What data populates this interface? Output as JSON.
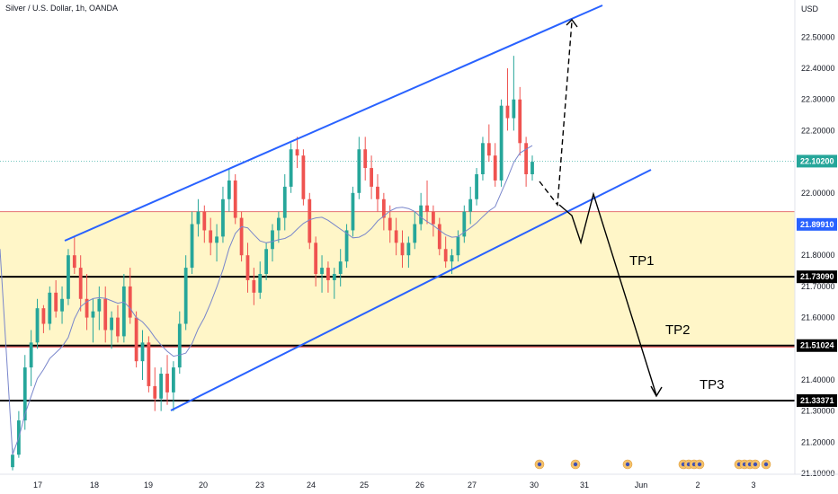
{
  "header": {
    "title": "Silver / U.S. Dollar, 1h, OANDA"
  },
  "chart_data": {
    "type": "candlestick",
    "title": "Silver / U.S. Dollar, 1h, OANDA",
    "currency": "USD",
    "ylim": [
      21.07,
      22.58
    ],
    "y_ticks": [
      "22.50000",
      "22.40000",
      "22.30000",
      "22.20000",
      "22.10000",
      "22.00000",
      "21.90000",
      "21.80000",
      "21.70000",
      "21.60000",
      "21.50000",
      "21.40000",
      "21.30000",
      "21.20000",
      "21.10000"
    ],
    "x_ticks": [
      "17",
      "18",
      "19",
      "20",
      "23",
      "24",
      "25",
      "26",
      "27",
      "30",
      "31",
      "Jun",
      "2",
      "3"
    ],
    "price_tags": [
      {
        "label": "22.10200",
        "value": 22.102,
        "color": "#26a69a"
      },
      {
        "label": "21.89910",
        "value": 21.8991,
        "color": "#2962ff"
      },
      {
        "label": "21.73090",
        "value": 21.7309,
        "color": "#000000"
      },
      {
        "label": "21.51024",
        "value": 21.5102,
        "color": "#000000"
      },
      {
        "label": "21.33371",
        "value": 21.3337,
        "color": "#000000"
      }
    ],
    "zone": {
      "top": 21.94,
      "bottom": 21.512,
      "color": "#fff6c8"
    },
    "levels": [
      21.7309,
      21.5102,
      21.3337
    ],
    "targets": [
      {
        "label": "TP1",
        "value": 21.78
      },
      {
        "label": "TP2",
        "value": 21.58
      },
      {
        "label": "TP3",
        "value": 21.4
      }
    ],
    "candles": [
      [
        21.12,
        21.18,
        21.11,
        21.16
      ],
      [
        21.16,
        21.3,
        21.15,
        21.27
      ],
      [
        21.27,
        21.48,
        21.24,
        21.44
      ],
      [
        21.44,
        21.56,
        21.38,
        21.52
      ],
      [
        21.52,
        21.66,
        21.5,
        21.63
      ],
      [
        21.63,
        21.64,
        21.55,
        21.58
      ],
      [
        21.58,
        21.7,
        21.56,
        21.68
      ],
      [
        21.68,
        21.72,
        21.6,
        21.62
      ],
      [
        21.62,
        21.7,
        21.58,
        21.66
      ],
      [
        21.66,
        21.82,
        21.64,
        21.8
      ],
      [
        21.8,
        21.86,
        21.74,
        21.76
      ],
      [
        21.76,
        21.8,
        21.62,
        21.66
      ],
      [
        21.66,
        21.74,
        21.56,
        21.6
      ],
      [
        21.6,
        21.66,
        21.52,
        21.62
      ],
      [
        21.62,
        21.7,
        21.56,
        21.66
      ],
      [
        21.66,
        21.7,
        21.52,
        21.56
      ],
      [
        21.56,
        21.62,
        21.5,
        21.6
      ],
      [
        21.6,
        21.64,
        21.52,
        21.54
      ],
      [
        21.54,
        21.74,
        21.52,
        21.7
      ],
      [
        21.7,
        21.76,
        21.58,
        21.6
      ],
      [
        21.6,
        21.62,
        21.44,
        21.46
      ],
      [
        21.46,
        21.56,
        21.4,
        21.52
      ],
      [
        21.52,
        21.54,
        21.36,
        21.38
      ],
      [
        21.38,
        21.44,
        21.3,
        21.34
      ],
      [
        21.34,
        21.44,
        21.3,
        21.42
      ],
      [
        21.42,
        21.48,
        21.32,
        21.36
      ],
      [
        21.36,
        21.46,
        21.3,
        21.44
      ],
      [
        21.44,
        21.62,
        21.42,
        21.58
      ],
      [
        21.58,
        21.8,
        21.56,
        21.76
      ],
      [
        21.76,
        21.94,
        21.74,
        21.9
      ],
      [
        21.9,
        21.98,
        21.86,
        21.94
      ],
      [
        21.94,
        21.96,
        21.84,
        21.88
      ],
      [
        21.88,
        21.92,
        21.8,
        21.84
      ],
      [
        21.84,
        21.9,
        21.78,
        21.86
      ],
      [
        21.86,
        22.02,
        21.84,
        21.98
      ],
      [
        21.98,
        22.08,
        21.94,
        22.04
      ],
      [
        22.04,
        22.06,
        21.9,
        21.92
      ],
      [
        21.92,
        21.94,
        21.78,
        21.8
      ],
      [
        21.8,
        21.84,
        21.68,
        21.72
      ],
      [
        21.72,
        21.76,
        21.64,
        21.68
      ],
      [
        21.68,
        21.78,
        21.66,
        21.74
      ],
      [
        21.74,
        21.84,
        21.72,
        21.82
      ],
      [
        21.82,
        21.9,
        21.78,
        21.88
      ],
      [
        21.88,
        21.94,
        21.84,
        21.92
      ],
      [
        21.92,
        22.06,
        21.88,
        22.02
      ],
      [
        22.02,
        22.16,
        22.0,
        22.14
      ],
      [
        22.14,
        22.18,
        22.08,
        22.12
      ],
      [
        22.12,
        22.14,
        21.96,
        21.98
      ],
      [
        21.98,
        22.0,
        21.82,
        21.84
      ],
      [
        21.84,
        21.86,
        21.7,
        21.74
      ],
      [
        21.74,
        21.8,
        21.68,
        21.76
      ],
      [
        21.76,
        21.78,
        21.68,
        21.72
      ],
      [
        21.72,
        21.76,
        21.66,
        21.74
      ],
      [
        21.74,
        21.82,
        21.7,
        21.78
      ],
      [
        21.78,
        21.9,
        21.76,
        21.88
      ],
      [
        21.88,
        22.02,
        21.86,
        22.0
      ],
      [
        22.0,
        22.18,
        21.98,
        22.14
      ],
      [
        22.14,
        22.18,
        22.04,
        22.08
      ],
      [
        22.08,
        22.12,
        21.98,
        22.02
      ],
      [
        22.02,
        22.06,
        21.94,
        21.98
      ],
      [
        21.98,
        22.0,
        21.88,
        21.92
      ],
      [
        21.92,
        21.96,
        21.84,
        21.88
      ],
      [
        21.88,
        21.92,
        21.8,
        21.84
      ],
      [
        21.84,
        21.88,
        21.76,
        21.8
      ],
      [
        21.8,
        21.86,
        21.76,
        21.84
      ],
      [
        21.84,
        21.94,
        21.82,
        21.9
      ],
      [
        21.9,
        22.0,
        21.88,
        21.96
      ],
      [
        21.96,
        22.04,
        21.9,
        21.94
      ],
      [
        21.94,
        21.96,
        21.86,
        21.9
      ],
      [
        21.9,
        21.92,
        21.8,
        21.82
      ],
      [
        21.82,
        21.86,
        21.76,
        21.78
      ],
      [
        21.78,
        21.82,
        21.74,
        21.8
      ],
      [
        21.8,
        21.88,
        21.78,
        21.86
      ],
      [
        21.86,
        21.96,
        21.84,
        21.94
      ],
      [
        21.94,
        22.02,
        21.9,
        21.98
      ],
      [
        21.98,
        22.08,
        21.96,
        22.06
      ],
      [
        22.06,
        22.18,
        22.04,
        22.16
      ],
      [
        22.16,
        22.22,
        22.1,
        22.12
      ],
      [
        22.12,
        22.16,
        22.02,
        22.04
      ],
      [
        22.04,
        22.3,
        22.02,
        22.28
      ],
      [
        22.28,
        22.4,
        22.2,
        22.24
      ],
      [
        22.24,
        22.44,
        22.2,
        22.3
      ],
      [
        22.3,
        22.34,
        22.12,
        22.16
      ],
      [
        22.16,
        22.18,
        22.02,
        22.06
      ],
      [
        22.06,
        22.12,
        22.04,
        22.1
      ]
    ]
  }
}
